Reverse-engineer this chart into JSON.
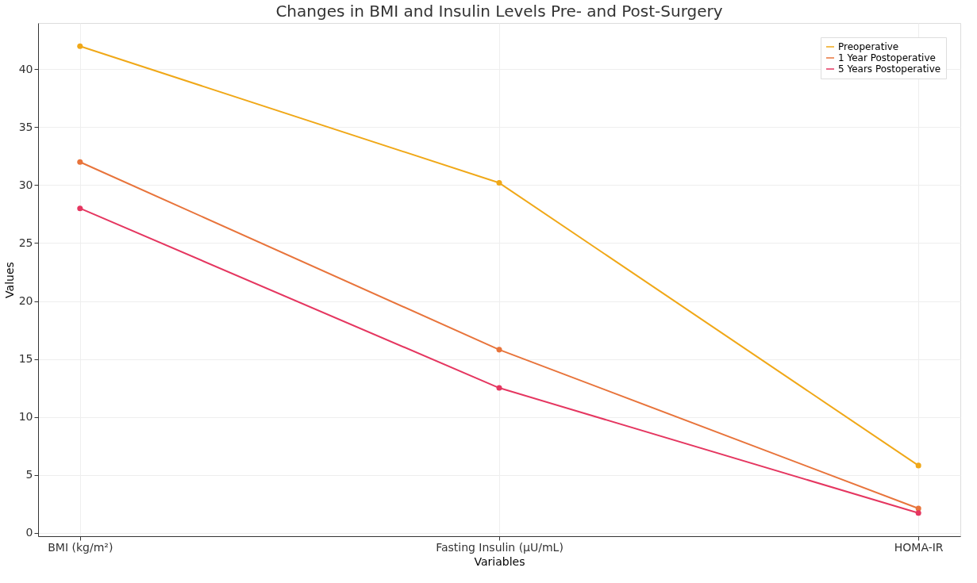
{
  "chart_data": {
    "type": "line",
    "title": "Changes in BMI and Insulin Levels Pre- and Post-Surgery",
    "xlabel": "Variables",
    "ylabel": "Values",
    "categories": [
      "BMI (kg/m²)",
      "Fasting Insulin (μU/mL)",
      "HOMA-IR"
    ],
    "series": [
      {
        "name": "Preoperative",
        "color": "#f0a818",
        "values": [
          42,
          30.2,
          5.8
        ]
      },
      {
        "name": "1 Year Postoperative",
        "color": "#e8743b",
        "values": [
          32,
          15.8,
          2.1
        ]
      },
      {
        "name": "5 Years Postoperative",
        "color": "#e53660",
        "values": [
          28,
          12.5,
          1.7
        ]
      }
    ],
    "ylim": [
      -0.3,
      44
    ],
    "yticks": [
      0,
      5,
      10,
      15,
      20,
      25,
      30,
      35,
      40
    ],
    "grid": true,
    "legend": "top right",
    "marker": "circle",
    "line_style": "solid"
  }
}
